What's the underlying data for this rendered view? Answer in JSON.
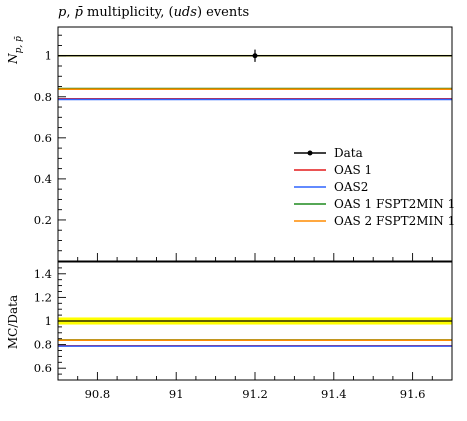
{
  "chart_data": [
    {
      "type": "line",
      "title": "p, p̄ multiplicity, (uds) events",
      "title_parts": {
        "a": "p",
        "sep": ", ",
        "b": "p̄",
        "mid": " multiplicity, (",
        "it": "uds",
        "end": ") events"
      },
      "ylabel": "N",
      "ylabel_sub": "p, p̄",
      "ylim": [
        0,
        1.14
      ],
      "yticks": [
        0.2,
        0.4,
        0.6,
        0.8,
        1
      ],
      "ytick_labels": [
        "0.2",
        "0.4",
        "0.6",
        "0.8",
        "1"
      ],
      "xlim": [
        90.7,
        91.7
      ],
      "legend_position": "right",
      "data_point": {
        "x": 91.2,
        "y": 1.0,
        "yerr": 0.03
      },
      "series": [
        {
          "name": "Data",
          "color": "#000000",
          "y": 1.0,
          "marker": true
        },
        {
          "name": "OAS 1",
          "color": "#e41a1c",
          "y": 0.79
        },
        {
          "name": "OAS2",
          "color": "#2e64fe",
          "y": 0.787
        },
        {
          "name": "OAS 1 FSPT2MIN 1",
          "color": "#1f8a1f",
          "y": 0.84
        },
        {
          "name": "OAS 2 FSPT2MIN 1",
          "color": "#ff8c00",
          "y": 0.837
        }
      ],
      "band_color": "#ffff00"
    },
    {
      "type": "line",
      "ylabel": "MC/Data",
      "ylim": [
        0.5,
        1.5
      ],
      "yticks": [
        0.6,
        0.8,
        1,
        1.2,
        1.4
      ],
      "ytick_labels": [
        "0.6",
        "0.8",
        "1",
        "1.2",
        "1.4"
      ],
      "xlim": [
        90.7,
        91.7
      ],
      "xticks": [
        90.8,
        91,
        91.2,
        91.4,
        91.6
      ],
      "xtick_labels": [
        "90.8",
        "91",
        "91.2",
        "91.4",
        "91.6"
      ],
      "band": [
        0.97,
        1.03
      ],
      "band_color": "#ffff00",
      "series": [
        {
          "name": "Data",
          "color": "#000000",
          "y": 1.0
        },
        {
          "name": "OAS 1",
          "color": "#e41a1c",
          "y": 0.79
        },
        {
          "name": "OAS2",
          "color": "#2e64fe",
          "y": 0.787
        },
        {
          "name": "OAS 1 FSPT2MIN 1",
          "color": "#1f8a1f",
          "y": 0.84
        },
        {
          "name": "OAS 2 FSPT2MIN 1",
          "color": "#ff8c00",
          "y": 0.837
        }
      ]
    }
  ]
}
